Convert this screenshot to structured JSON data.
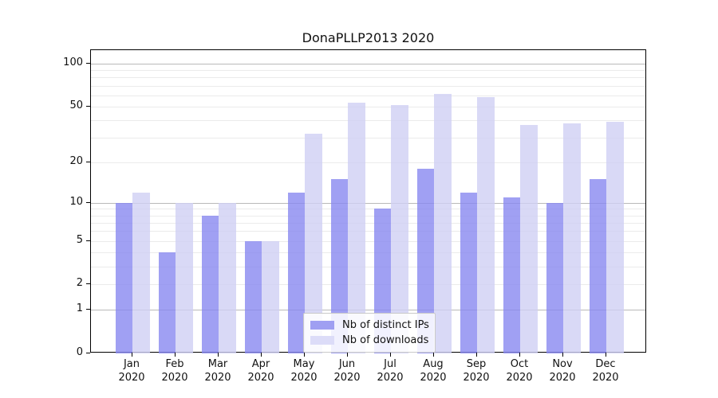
{
  "title": "DonaPLLP2013 2020",
  "chart_data": {
    "type": "bar",
    "title": "DonaPLLP2013 2020",
    "x_categories": [
      "Jan",
      "Feb",
      "Mar",
      "Apr",
      "May",
      "Jun",
      "Jul",
      "Aug",
      "Sep",
      "Oct",
      "Nov",
      "Dec"
    ],
    "x_year_line": "2020",
    "series": [
      {
        "name": "Nb of distinct IPs",
        "values": [
          10,
          4,
          8,
          5,
          12,
          15,
          9,
          18,
          12,
          11,
          10,
          15
        ]
      },
      {
        "name": "Nb of downloads",
        "values": [
          12,
          10,
          10,
          5,
          32,
          53,
          51,
          61,
          58,
          37,
          38,
          39
        ]
      }
    ],
    "y_axis": {
      "scale": "log1p",
      "ylim": [
        0,
        124
      ],
      "labeled_ticks": [
        0,
        1,
        2,
        5,
        10,
        20,
        50,
        100
      ],
      "major_gridlines": [
        1,
        10,
        100
      ],
      "minor_gridlines": [
        2,
        3,
        4,
        5,
        6,
        7,
        8,
        9,
        20,
        30,
        40,
        50,
        60,
        70,
        80,
        90
      ]
    },
    "legend": {
      "position": "lower-center",
      "items": [
        "Nb of distinct IPs",
        "Nb of downloads"
      ]
    },
    "colors": {
      "ips_bar": "rgba(136,136,240,0.8)",
      "downloads_bar": "rgba(208,208,244,0.8)",
      "ips_legend": "#9f9ff2",
      "downloads_legend": "#dcdcf8",
      "grid_major": "#b9b9b9",
      "grid_minor": "#ebebeb"
    }
  }
}
